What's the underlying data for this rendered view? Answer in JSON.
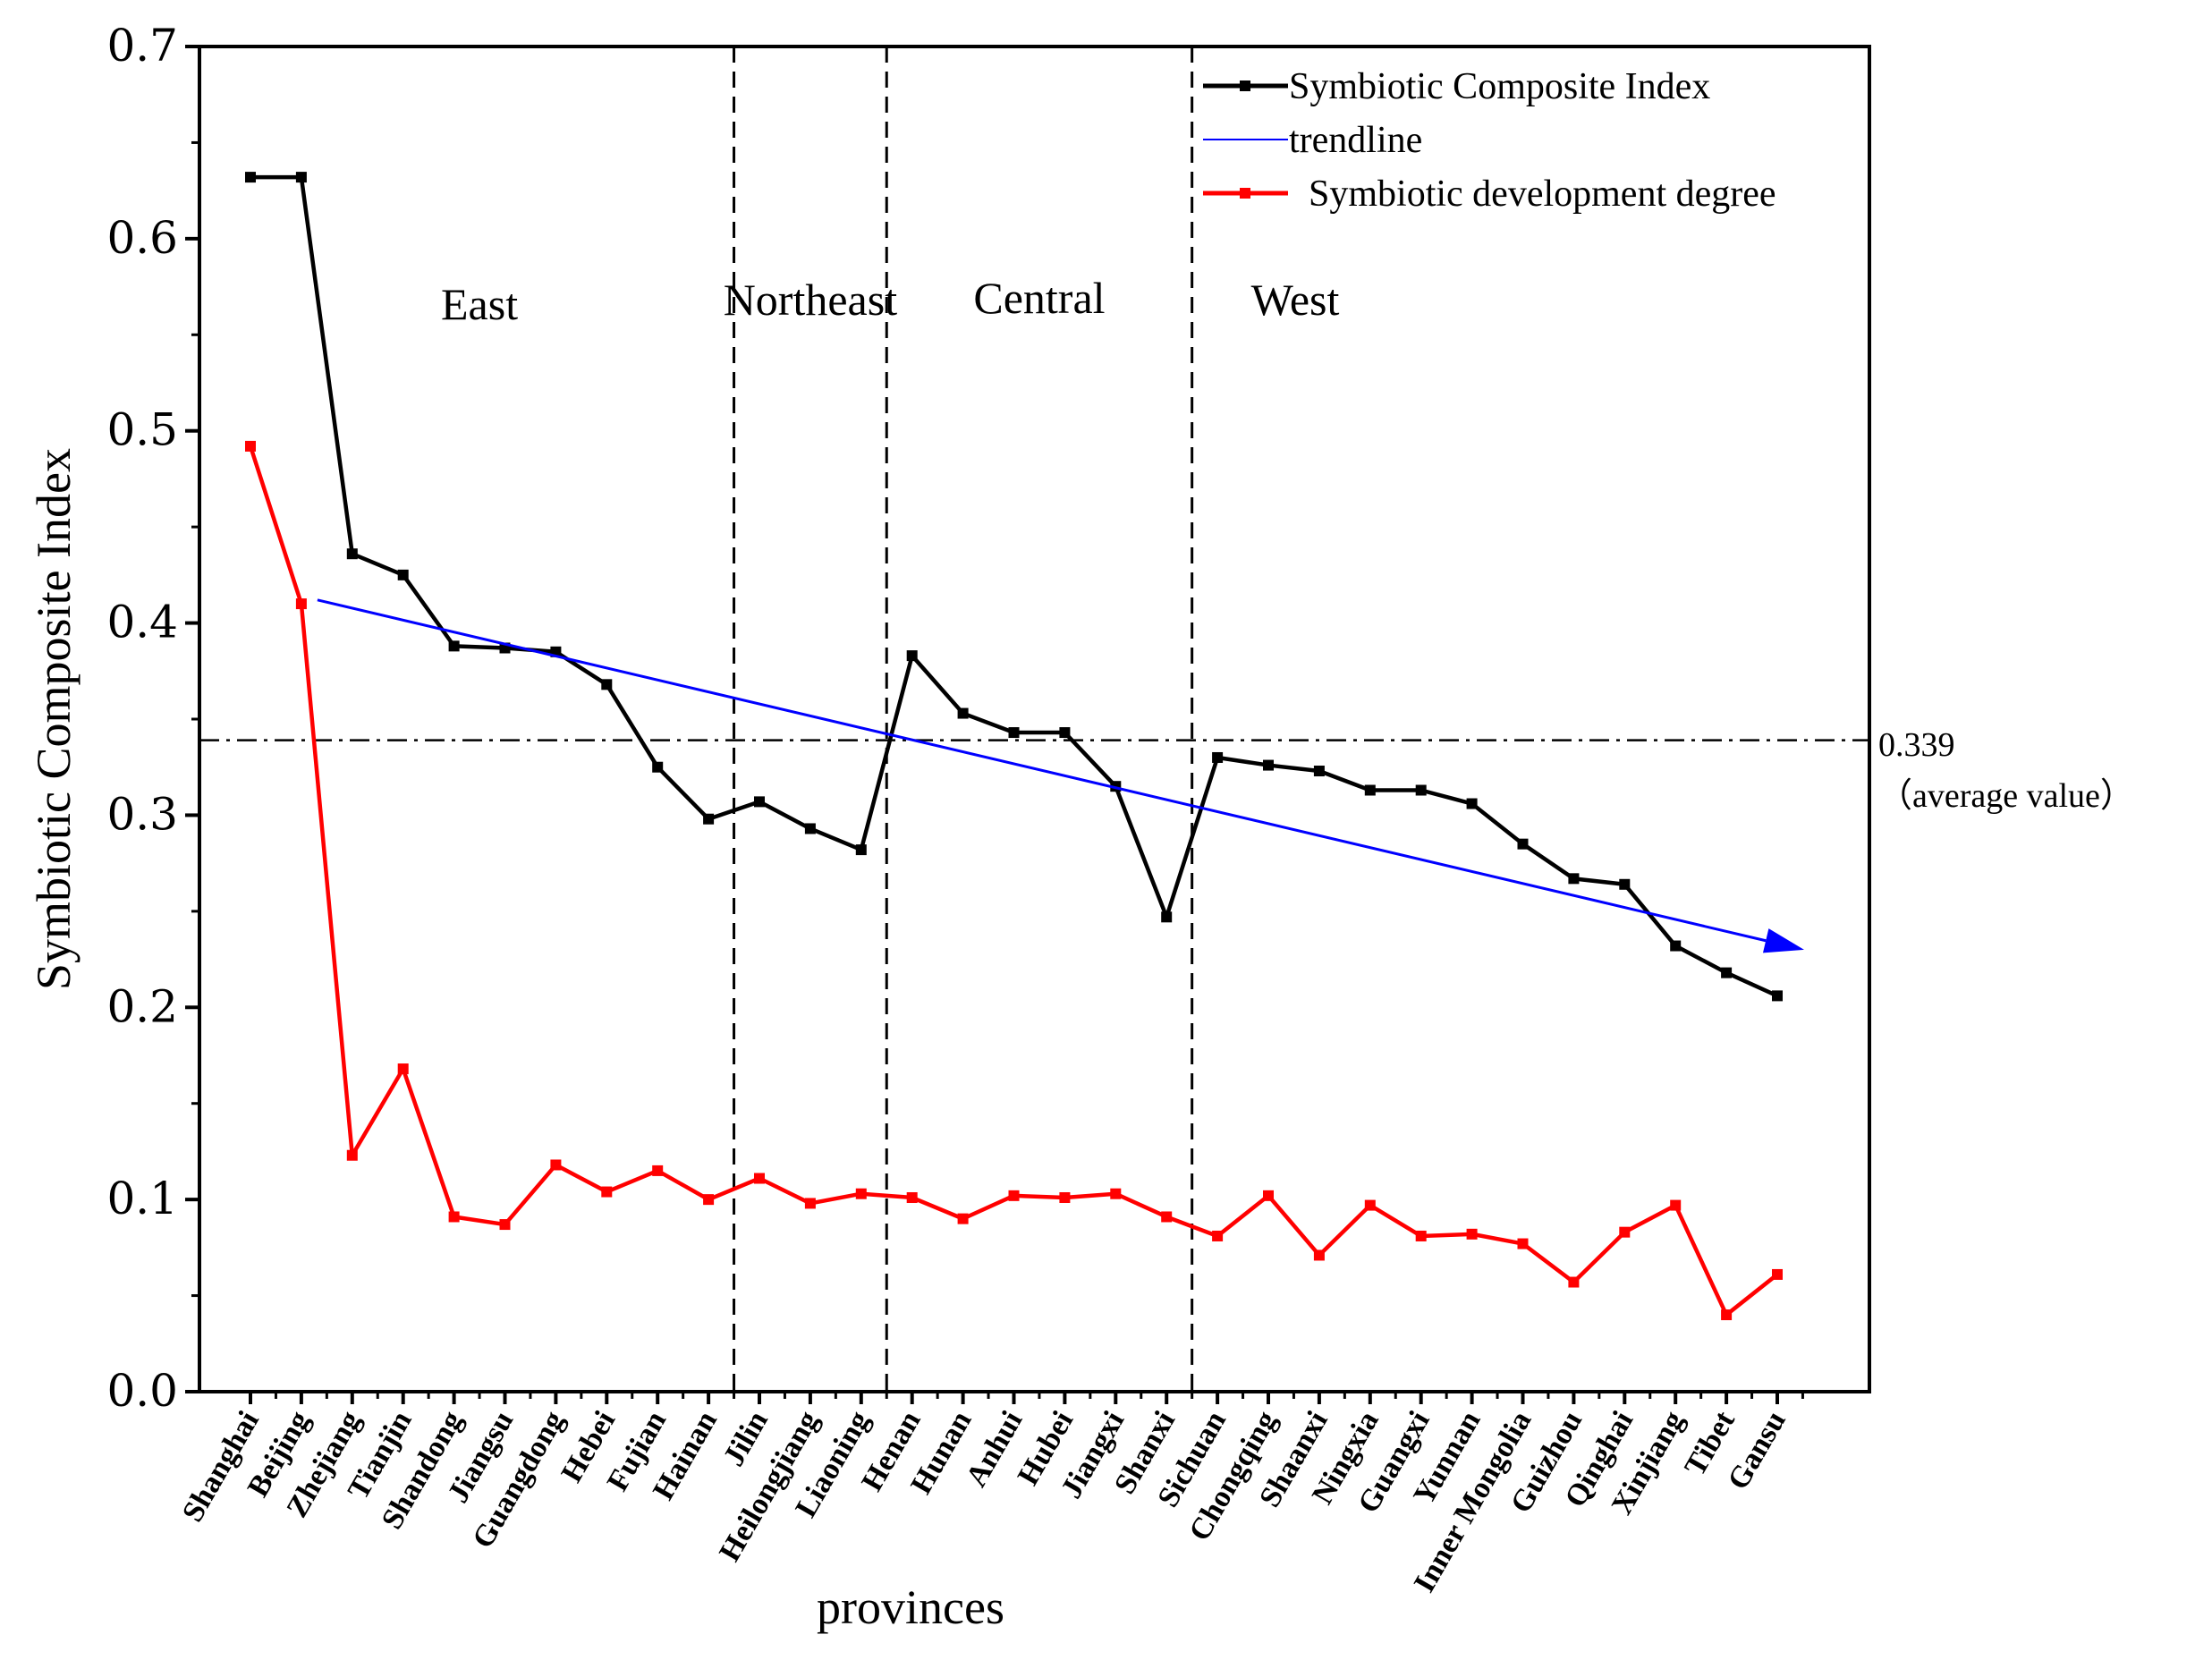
{
  "chart_data": {
    "type": "line",
    "xlabel": "provinces",
    "ylabel": "Symbiotic Composite Index",
    "ylim": [
      0,
      0.7
    ],
    "yticks": [
      "0.0",
      "0.1",
      "0.2",
      "0.3",
      "0.4",
      "0.5",
      "0.6",
      "0.7"
    ],
    "categories": [
      "Shanghai",
      "Beijing",
      "Zhejiang",
      "Tianjin",
      "Shandong",
      "Jiangsu",
      "Guangdong",
      "Hebei",
      "Fujian",
      "Hainan",
      "Jilin",
      "Heilongjiang",
      "Liaoning",
      "Henan",
      "Hunan",
      "Anhui",
      "Hubei",
      "Jiangxi",
      "Shanxi",
      "Sichuan",
      "Chongqing",
      "Shaanxi",
      "Ningxia",
      "Guangxi",
      "Yunnan",
      "Inner Mongolia",
      "Guizhou",
      "Qinghai",
      "Xinjiang",
      "Tibet",
      "Gansu"
    ],
    "series": [
      {
        "name": "Symbiotic Composite Index",
        "color": "#000000",
        "values": [
          0.632,
          0.632,
          0.436,
          0.425,
          0.388,
          0.387,
          0.385,
          0.368,
          0.325,
          0.298,
          0.307,
          0.293,
          0.282,
          0.383,
          0.353,
          0.343,
          0.343,
          0.315,
          0.247,
          0.33,
          0.326,
          0.323,
          0.313,
          0.313,
          0.306,
          0.285,
          0.267,
          0.264,
          0.232,
          0.218,
          0.206
        ]
      },
      {
        "name": "Symbiotic development degree",
        "color": "#ff0000",
        "values": [
          0.492,
          0.41,
          0.123,
          0.168,
          0.091,
          0.087,
          0.118,
          0.104,
          0.115,
          0.1,
          0.111,
          0.098,
          0.103,
          0.101,
          0.09,
          0.102,
          0.101,
          0.103,
          0.091,
          0.081,
          0.102,
          0.071,
          0.097,
          0.081,
          0.082,
          0.077,
          0.057,
          0.083,
          0.097,
          0.04,
          0.061
        ]
      }
    ],
    "trendline": {
      "name": "trendline",
      "color": "#0000ff",
      "start": {
        "category": "Beijing",
        "value": 0.412
      },
      "end": {
        "category": "Gansu",
        "value": 0.23
      }
    },
    "average": {
      "value": 0.339,
      "label": "0.339",
      "sublabel": "（average value）"
    },
    "regions": [
      {
        "name": "East"
      },
      {
        "name": "Northeast"
      },
      {
        "name": "Central"
      },
      {
        "name": "West"
      }
    ],
    "legend_position": "top-right"
  }
}
